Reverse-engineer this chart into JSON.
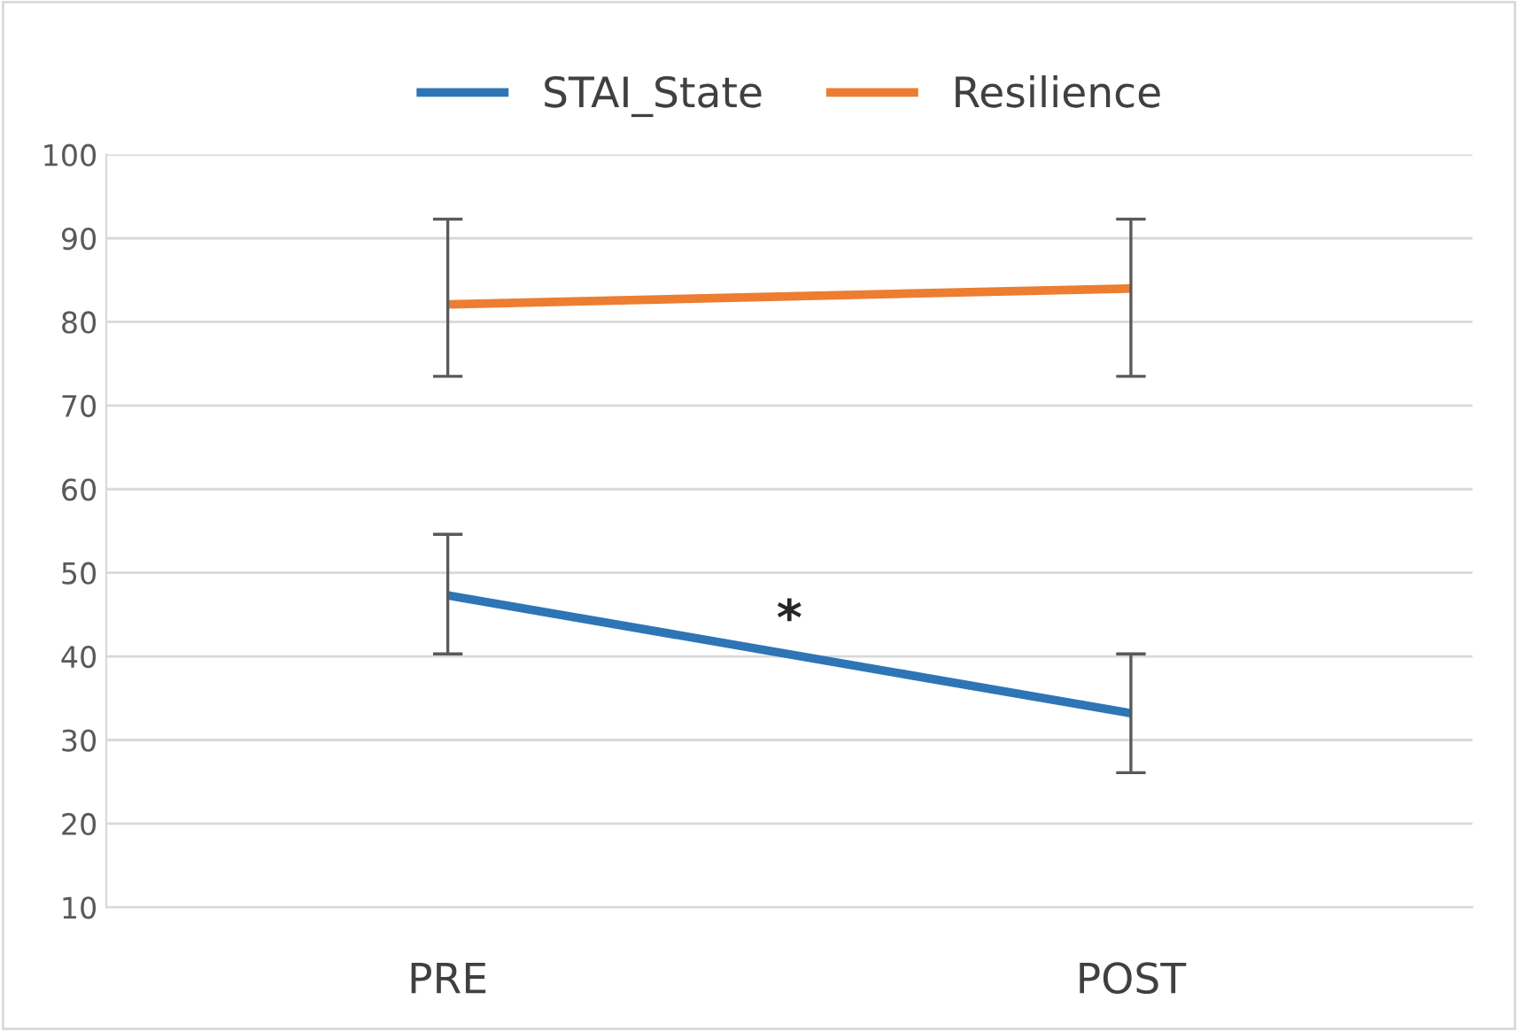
{
  "chart_data": {
    "type": "line",
    "categories": [
      "PRE",
      "POST"
    ],
    "series": [
      {
        "name": "STAI_State",
        "color": "#2e75b6",
        "values": [
          47.3,
          33.2
        ],
        "errors": [
          [
            40.3,
            54.6
          ],
          [
            26.1,
            40.3
          ]
        ]
      },
      {
        "name": "Resilience",
        "color": "#ed7d31",
        "values": [
          82.1,
          84.0
        ],
        "errors": [
          [
            73.5,
            92.3
          ],
          [
            73.5,
            92.3
          ]
        ]
      }
    ],
    "ylim": [
      10,
      100
    ],
    "yticks": [
      10,
      20,
      30,
      40,
      50,
      60,
      70,
      80,
      90,
      100
    ],
    "grid": "y",
    "legend": "top",
    "marker": "none",
    "line_style": "solid",
    "annotations": [
      "*"
    ]
  }
}
